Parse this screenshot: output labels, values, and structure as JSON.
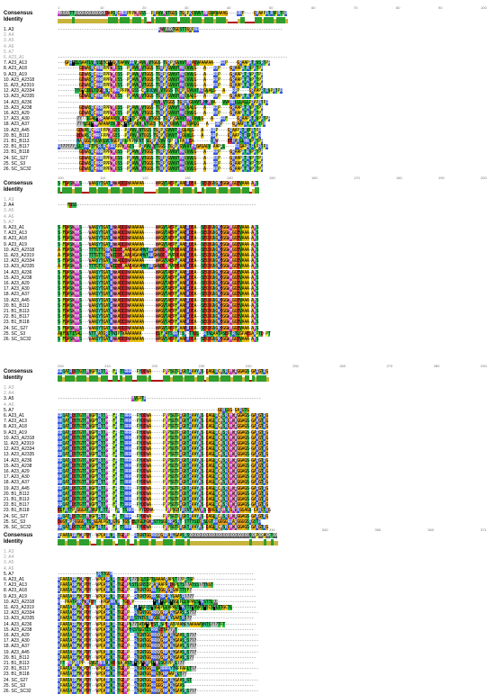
{
  "labels": {
    "consensus": "Consensus",
    "identity": "Identity",
    "sequences": [
      "1. A3",
      "2. A4",
      "3. A5",
      "4. A6",
      "5. A7",
      "6. A23_A1",
      "7. A23_A13",
      "8. A23_A18",
      "9. A23_A19",
      "10. A23_A2318",
      "11. A23_A2319",
      "12. A23_A2334",
      "13. A23_A2335",
      "14. A23_A236",
      "15. A23_A238",
      "16. A23_A29",
      "17. A23_A30",
      "18. A23_A37",
      "19. A23_A45",
      "20. B1_B112",
      "21. B1_B113",
      "22. B1_B117",
      "23. B1_B118",
      "24. SC_S27",
      "25. SC_S3",
      "26. SC_SC32"
    ]
  },
  "blocks": [
    {
      "ruler": [
        "1",
        "10",
        "20",
        "30",
        "40",
        "50",
        "60",
        "70",
        "80",
        "90",
        "100"
      ],
      "consensus": "MXXXXTTXXXXXXXXXXXXXDWASRCMRRPPPWMGSS--PRAVVMVTGGS-TGRPKGVVVTMRGVAVAAAG----RRP----GRAAPRTRVPRTPR",
      "seqs": [
        "------------------------------------------RWVXXXTGGSTTGXPKR-----------------------------------",
        "",
        "",
        "",
        "",
        "------------------------------------------------------------------------------------------------",
        "---GPR*ILSAATLVRSSDTC**GXTAAVVRRVRAVVMVTGGS-TGRPKGVVVTMRADVAAAAAA---RRP----GRAAPRTRVSRTPR",
        "---------GDWASRCMRRPPPWMGSS--PRAVVMVTGGS-TGRPKGVVVTMRGVVLG---A---RRP----GRAAPRTRVPRTPR",
        "---------GDWASRCMRRPPPWMGSS--PRAVVMVTGGS-TGRPKGVVVTMRGVVLG---A---RRP----GRAAPRTRVPRTPR",
        "---------GDWASRCMRRPPPWMGSS--PRAVVMVTGGS-TGRPKGVVVTMRGVVLG---A---RRP----GRAAPRTRVPRTPR",
        "---------GDWASRCMRRPPPWMGSS--PRAVVMVTGGS-TGRPKGVVVTMRGVVLG---A---RRP----GRAAPRTRVPRTPR",
        "-------TTG*CIDLTIGDRSRCMRRPPPWMGSS-CRIQQVVMVTGGS-TGRPKGVVVTMRGVALG---A---RRP----GRAAPRTRVPRTPR",
        "---------GDWASRCMRRPPPWMGSS--PRAVVMVTGGS-TGRPKGVVVTMRGVALG---A---RRP----GRAAPRTRVPRTPR",
        "---------------------------------------RAVVMVTGGS-TGRPKGVVVTMHHMVA---VVARRLLLALLPRAPRTPR",
        "---------GDWASRCMRRPPPWMGSS--PRAVVMVTGGS-TGRPKGVVVTMRGVALG---A---RRP----GRAAPRTRVPRTPR",
        "---------GDWASRCMRRPPPWMGSS--PRAVVMVTGGS-TGRPKGVVVTMRGVVLG---A---RRP----GRAAPRTRVPRTPR",
        "--------??77IGAL*MRAAAAASVMDCR*TPRAVVMVTGGS-TGRPKGVVVTMRGVVLG---A---RRF----GRAAPRTRVPRTPR",
        "--------???LGL*MRAAAAASVMDCR*TPRAVVMVTGGS-TGRPKGVVVTMRGVALG---A---RRP----GRAAPRTRVPRTPR",
        "--------GDWASRCMRRPPPWMGSS--PRAVVMVTGGS-TGRPKGVVVTMRGVALG---A---RRP----GRAAPRTRVPRTPR",
        "--------DDWASRCMRRPPPWMGSS--PRAVVMVTGGS-TGRPKGVVVTMRGVVLG---A---RRP----GRAAPRTRVPRTPR",
        "--------HARGGQPQGVGLVQNGGPRPLPPPNPNT-SGRPKGVV-QP-RLPARREA-------QRW----EERARLLRRVPRTPR",
        "R??????RLLTRRPTFGRSRCMRRPPPWMGSS--PRAVVMVTGGS-TGRPKGVVVTMRGAGAGV-AAPRL----RRGAPRTRVPRTPR",
        "---------GDWASRCMRRPPPWMGSS--PRAVVMVTGGS-TGRPKGVVVTMRGVVLG---A---RRP----GRAAPRTRVPRTPR",
        "---------GDWASRCMRRPPPWMGSS--PRAVVMVTGGS-TGRPKGVVVTMRGVVLG---A---RRP----GRAAPRTRVPRTPR",
        "---------GDWASRCMRRPPPWMGSS--PRAVVMVTGGS-TGRPKGVVVTMRGVVLG---A---RRP----GRAAPRTRVPRTPR",
        "---------GDWASRCMRRPPPWMGSS--PRAVVMVTGGS-TGRPKGVVVTMRGVVLG---A---RRP----GRAAPRTRVPRTPR"
      ]
    },
    {
      "ruler": [
        "100",
        "110",
        "120",
        "130",
        "140",
        "150",
        "160",
        "170",
        "180",
        "190",
        "200"
      ],
      "consensus": "S-FDASWMMS---WAASYTGATRWWADDDWAAAAAA-----WAGVTAEPFKAAERDEA--SEGDGNGKEGGWMGGEVAAA-AMS",
      "seqs": [
        "",
        "----FDSS---------------------------------------------------------------------------",
        "",
        "",
        "",
        "S-FDASWMMS---WAASYTGATRWWADDDWAAAAAA-----WAGVTAEPFKAAERDEA--SEGDGNGKEGGWMGGEVAAA-AMS",
        "S-FDASWMMS---WAASYTGATRWWADDDWAAAAAA-----WAGVTAEPFKAAERDEA--SEGDGNGKEGGWMGGEVAAA-AMS",
        "S-FDASWMMS---WAASYTGATRWWADDDWAAAAAA-----WAGVTAEPFKAAERDEA--SEGDGNGKEGGWMGGEVAAA-AMS",
        "S-FDASWMMS---WAASYTGATRWWADDDWAAAAAA-----WAGVTAEPFKAAERDEA--SEGDGNGKEGGWMGGEVAAA-AMS",
        "A-FDASWMMS---TTTGTTGRRWIDDEMAAEAGAAHVTRRGWVDDMPVPDEAAERDEA--SEGDGNGKEGGWMGGEVAAA-AMS",
        "A-FDASWMMS---TTTGTTGRRWIDDEMAAEAGAAHVTRRGWVDDMPVPDEAAERDEA--SEGDGNGKEGGWMGGEVAAA-AMS",
        "S-FDASWMMS---WAASYTGATRWWADDDWAAAAAA-----WAGVTAEPFKAAERDEA--SEGDGNGKEGGWMGGEVAAA-AMS",
        "A-FDASWMMS---TTTGTTGRRWIDDEMAAEAGAAHVTRRGWVDDMPVPDEAAERDEA--SEGDGNGKEGGWMGGEVAAA-AMS",
        "S-FDASWMMS---WAASYTGATRWWADDDWAAAAAA-----WAGVTAEPFKAAERDEA--SEGDGNGKEGGWMGGEVAAA-AMS",
        "S-FDASWMMS---WAASYTGATRWWADDDWAAAAAA-----WAGVTAEPFKAAERDEA--SEGDGNGKEGGWMGGEVAAA-AMS",
        "S-FDASWMMS---WAASYTGATRWWADDDWAAAAAA-----WAGVTAEPFKAAERDEA--SEGDGNGKEGGWMGGEVAAA-AMS",
        "S-FDASWMMS---WAASYTGATRWWADDDWAAAAAA-----WAGVTAEPFKAAERDEA--SEGDGNGKEGGWMGGEVAAA-AMS",
        "S-FDASWMMS---WAASYTGATRWWADDDWAAAAAA-----WAGVTAEPFKAAERDEA--SEGDGNGKEGGWMGGEVAAA-AMS",
        "S-FDASWMMS---WAASYTGATRWWADDDWAAAAAA-----WAGVTAEPFKAAERDEA--SEGDGNGKEGGWMGGEVAAA-AMS",
        "S-FDASWMMS---WAASYTGATRWWADDDWAAAAAA-----WAGVTAEPFKAAERDEA--SEGDGNGKEGGWMGGEVAAA-AMS",
        "S-FDASWMMS---WAASYTGATRWWADDDWAAAAAA-----WAGVTAEPFKAAERDEA--SEGDGNGKEGGWMGGEVAAA-AMS",
        "S-FDASWMMS---WAASYTGATRWWADDDWAAAAAA-----WAGVTAEPFKAAERDEA--SEGDGNGKEGGWMGGEVAAA-AMS",
        "S-FDASWMMS---WAASYTGATRWWADDDWAAAAAA-----WAGVTAEPFKAAERDEA--SEGDGNGKEGGWMGGEVAAA-AMS",
        "S-FDASWMMS---WAASYTGATRWWADDDWAAAAAA-----WAGVTAEPFKAAERDEA--SEGDGNGKEGGWMGGEVAAA-AMS",
        "AVFDLTITAL---NTTKATGRITNIPTWAAAAAAA------ELFKATSRRTBSK-TTDL--RTNLAATASEPTRTLGPAEGARPTD-PT",
        "S-FDASWMMS---WAASYTGATRWWADDDWAAAAAA-----WAGVTAEPFKAAERDEA--SEGDGNGKEGGWMGGEVAAA-AMS",
        "S-FDASWTMSSRDAANDYEVATHWWADDDWSETAAAW---RLRAFPFPFLVGRHRGGAGHAAGRSTHHRGGRRGGVATPPP--RPR"
      ]
    },
    {
      "ruler": [
        "200",
        "210",
        "220",
        "230",
        "240",
        "250",
        "260",
        "270",
        "280",
        "290"
      ],
      "consensus": "RRQATRDSTGTTMVGPTRTTM--FR-TSRRR--PYDDWA-----PMPSGTPRGNTRAAYMS-DAGLRCMSRGMWRGGAGS-GARGTRG",
      "seqs": [
        "",
        "",
        "-------------------------------MVGPTR------------------------------------------------",
        "",
        "-------------------------------------------------------------------GGRLGG-GARGTG",
        "RRQATRDSTGTTMVGPTRTTM--FR-TSRRR--PYDDWA-----PMPSGTPRGNTRAAYMS-DAGLRCMSRGMWRGGAGS-GARGTRG",
        "RRQATRDSTGTTMVGPTRTTM--FR-TSRRR--PYDDWA-----PMPSGTPRGNTRAAYMS-DAGLRCMSRGMWRGGAGS-GARGTRG",
        "RRQATRDSTGTTMVGPTRTTM--FR-TSRRR--PYDDWA-----PMPSGTPRGNTRAAYMS-DAGLRCMSRGMWRGGAGS-GARGTRG",
        "RRQATRDSTGTTMVGPTRTTM--FR-TSRRR--PYDDWA-----PMPSGTPRGNTRAAYMS-DAGLRCMSRGMWRGGAGS-GARGTRG",
        "RRQATRDSTGTTMVGPTRTTM--FR-TSRRR--PYDDWA-----PMPSGTPRGNTRAAYMS-DAGLRCMSRGMWRGGAGS-GARGTRG",
        "RRQATRDSTGTTMVGPTRTTM--FR-TSRRR--PYDDWA-----PMPSGTPRGNTRAAYMS-DAGLRCMSRGMWRGGAGS-GARGTRG",
        "RRQATRDSTGTTMVGPTRTTM--FR-TSRRR--PYDDWA-----PMPSGTPRGNTRAAYMS-DAGLRCMSRGMWRGGAGS-GARGTRG",
        "RRQATRDSTGTTMVGPTRTTM--FR-TSRRR--PYDDWA-----PMPSGTPRGNTRAAYMS-DAGLRCMSRGMWRGGAGS-GARGTRG",
        "RRQATRDSTGTTMVGPTRTTM--FR-TSRRR--PYDDWA-----PMPSGTPRGNTRAAYMS-DAGLRCMSRGMWRGGAGS-GARGTRG",
        "RRQATRDSTGTTMVGPTRTTM--FR-TSRRR--PYDDWA-----PMPSGTPRGNTRAAYMS-DAGLRCMSRGMWRGGAGS-GARGTRG",
        "RRQATRDSTGTTMVGPTRTTM--FR-TSRRR--PYDDWA-----PMPSGTPRGNTRAAYMS-DAGLRCMSRGMWRGGAGS-GARGTRG",
        "RRQATRDSTGTTMVGPTRTTM--FR-TSRRR--PYDDWA-----PMPSGTPRGNTRAAYMS-DAGLRCMSRGMWRGGAGS-GARGTRG",
        "RRQATRDSTGTTMVGPTRTTM--FR-TSRRR--PYDDWA-----PMPSGTPRGNTRAAYMS-DAGLRCMSRGMWRGGAGS-GARGTRG",
        "RRQATRDSTGTTMVGPTRTTM--FR-TSRRR--PYDDWA-----PMPSGTPRGNTRAAYMS-DAGLRCMSRGMWRGGAGS-GARGTRG",
        "RRQATRDSTGTTMVGPTRTTM--FR-TSRRR--PYDDWA-----PMPSGTPRGNTRAAYMS-DAGLRCMSRGMWRGGAGS-GARGTRG",
        "RRQATRDSTGTTMVGPTRTTM--FR-TSRRR--PYDDWA-----PMPSGTPRGNTRAAYMS-DAGLRCMSRGMWRGGAGS-GARGTRG",
        "RRQATRDSTGTTMVGPTRTTM--FR-TSRRR--PYDDWA-----PMPSGTPRGNTRAAYMS-DAGLRCMSRGMWRGGAGS-GARGTRG",
        "ELFRTTPRGGGATMVGPTRTTM--FR-TSRRR--PYDDWA-----PMPSGTPRGNTRAAYMS-DAGLRCMSRGMWRGGAGS-GARGTRG",
        "RRQATRDSTGTTMVGPTRTTM--FR-TSRRR--PYDDWA-----PMPSGTPRGNTRAAYMS-DAGLRCMSRGMWRGGAGS-GARGTRG",
        "DWGTRPRGGGGRTSRGGAGPGTRGTG-TGS-ELTGLHGWRSTTSGSRRASRT-STTTSIGRSLGTRRGGGGRRARGGGGSRGSTR",
        "RRQATRDSTGTTMVGPTRTTM--FR-TSRRR--PYDDWA-----PMPSGTPRGNTRAAYMS-DAGLRCMSRGMWRGGAGS-GARGTRG",
        "RRQATRDSTGTTMVGPTRTTM--FR-TSRRR--PYDDWA-----PMPSGTPRGNTRAAYMS-DAGLRCMSRGMWRGGAGS-GARGTRG"
      ]
    },
    {
      "ruler": [
        "290",
        "300",
        "310",
        "320",
        "330",
        "340",
        "350",
        "360",
        "371"
      ],
      "consensus": "RPAATARRFWRPDY--WPGARRVR-TGDMP--RTGNTGGRRXXGRRARYGAASRSXXXXXXXXXXXXXXXXXXXXXXXXXSXXPXXAXXTXX",
      "seqs": [
        "",
        "",
        "",
        "",
        "----------------YRTTGGR-----------------------------------------------------------",
        "RPAATARRFWRPDY--WPGARRVR-TGDMPQ??ICLSIPTLAAAARAPLT??PRTSP--------------------------",
        "RPAATARRFWRPDY--WPGARRVR-TGDMPNSTLGNSIPRARAAPARDVPLTS??ATSS??TNGT-----------------",
        "RPAATARRFWRPDY--WPGARRVR-TGDMP--RTGNTGGRRTSGGRGRGAPTTSF?--------------------------",
        "RPAATARRFWRPDY--WPGARRVR-TGDMP--RTGNTGGRRSGRRARYGAASR????--------------------------",
        "R--PAATARRFWRPDY--WPGARRVR-TGDMP--------*HR*LPQ*SGLPLLVPALS*KSTTLXX----------------",
        "RPAATARRFWRPDY--WPGARRVR-TGDMP--HR*LPQS*SGLPLLVPALS*KSTT*VVAT*SCS*LITGCTL----------",
        "RPAATARRFWRPDY--WPGARRVR-TGDMP--RTGNTGGRRXXGRRARYGAASRS???--------------------------",
        "RPAATARRFWRPDY--WPGARRVR-TGDMPRRSTNTGSRRGSGRRARYGAASRS??--------------------------",
        "RPAATARRFWRPDY--WPGARRVR-TGDMPV??TATA*PESTKSPERATPAANGYAAAAAVNTS???TPT-------------",
        "RPAATARRFWRPDY--WPGARRVR-TGDMPHQSTLGTISRKRLETA??MT--------------------------------",
        "RPAATARRFWRPDY--WPGARRVR-TGDMP--RTGNTGGRRXXGRRARYGAASRS???--------------------------",
        "RPAATARRFWRPDY--WPGARRVR-TGDMP--RTGNTGGRRXXGRRARYGAASRS???--------------------------",
        "RPAATARRFWRPDY--WPGARRVR-TGDMP--RTGNTGGRRXXGRRARYGAASRS???--------------------------",
        "RPAATARRFWRPDY--WPGARRVR-TGDMP--RTGNTGGRRXXGRRARYGAASRS???--------------------------",
        "RPAATARRFWRPDY--WPGARRVR-TGDMP--RTGNTGGRRXXGRRARYGAASRS??--------------------------",
        "RPT-MRPRRPP--GVGTMRRVRVE-VARASTR*TP*WRPL*MLSGYPPRL???-----------------------------",
        "RPAATARRFWRPDY--WPGARRVR-TGDMP--RTGNTGGRRVARRRRYTNPPAPLT??--------------------------",
        "RPAATARRFWRPDY--WPGARRVR-TGDMP--RTGNTGGRRGTGRRAAPRLT??---------------------------",
        "RPAATARRFWRPDY--WPGARRVR-TGDMP--RTGNTGGRRGGGRRARYGAASRST----------------------------",
        "RPAATARRFWRPDY--WPGARRVR-TGDMP--RTGNTGGRRGGGRRARYGAAS-----------------------------",
        "RPAATARRFWRPDY--WPGARRVR-TGDMP--RTGNTGGRRXXGRRARYGAASRS???--------------------------",
        "RPAATARRFWRPDY--WPGARRVR-TGDMP--RTGNTGGRRXXGRRARYGAASRS???--------------------------",
        ""
      ]
    }
  ],
  "colors": {
    "A": "#e8c010",
    "R": "#3a5ae0",
    "N": "#40c8c0",
    "D": "#e03030",
    "C": "#f0d020",
    "Q": "#40c8c0",
    "E": "#e03030",
    "G": "#e8a020",
    "H": "#20a0b0",
    "I": "#30b030",
    "L": "#30b030",
    "K": "#3a5ae0",
    "M": "#c030c0",
    "F": "#a0e020",
    "P": "#f0f040",
    "S": "#30c060",
    "T": "#30c060",
    "W": "#f080a0",
    "Y": "#60d0d0",
    "V": "#30b030",
    "X": "#606060",
    "*": "#000000",
    "?": "#c0c0c0",
    "identity_high": "#2e9e2e",
    "identity_mid": "#c8b43c",
    "identity_low": "#b01010"
  }
}
